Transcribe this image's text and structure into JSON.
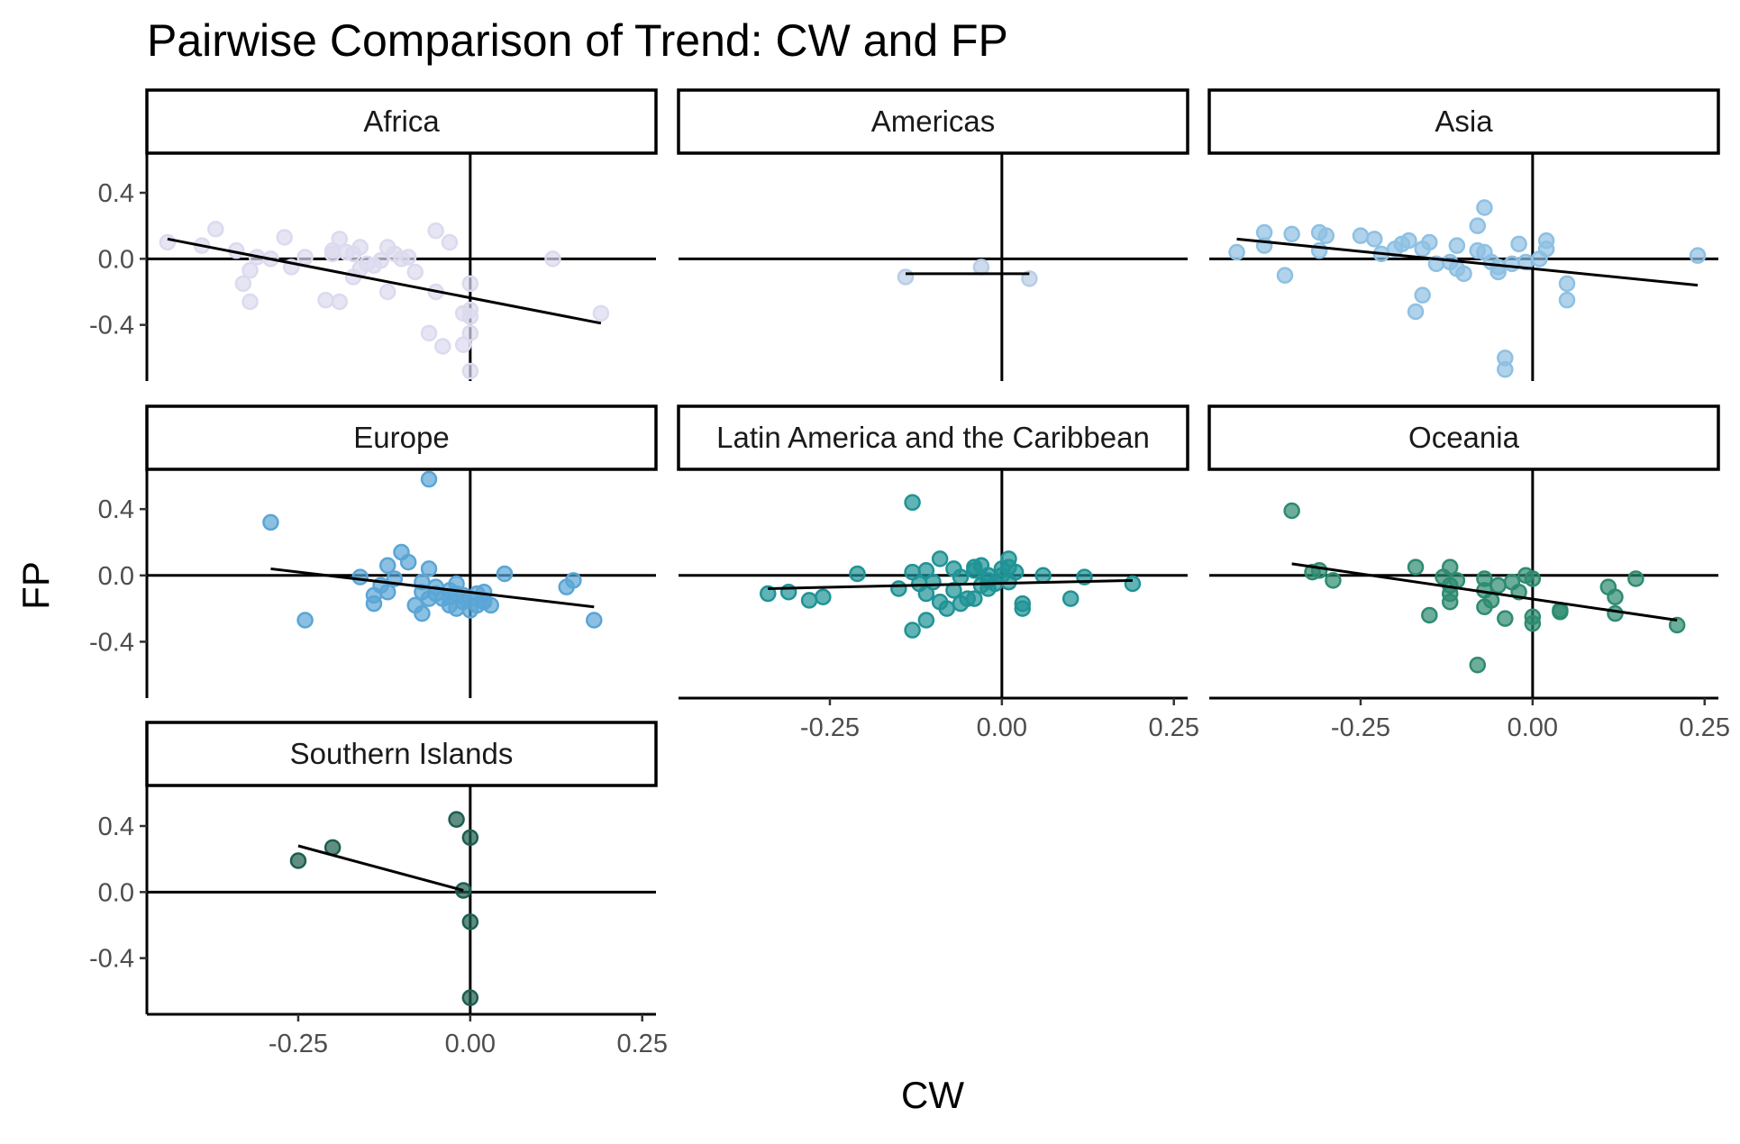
{
  "chart_data": {
    "type": "scatter",
    "title": "Pairwise Comparison of Trend: CW and FP",
    "xlabel": "CW",
    "ylabel": "FP",
    "xlim": [
      -0.47,
      0.27
    ],
    "ylim": [
      -0.74,
      0.64
    ],
    "x_ticks": [
      -0.25,
      0.0,
      0.25
    ],
    "x_tick_labels": [
      "-0.25",
      "0.00",
      "0.25"
    ],
    "y_ticks": [
      0.4,
      0.0,
      -0.4
    ],
    "y_tick_labels": [
      "0.4",
      "0.0",
      "-0.4"
    ],
    "grid": false,
    "legend": "none",
    "reference_lines": {
      "x": 0,
      "y": 0
    },
    "panels": [
      {
        "name": "Africa",
        "color": "#dcdaee",
        "trend": {
          "x": [
            -0.44,
            0.19
          ],
          "y": [
            0.12,
            -0.39
          ]
        },
        "points": [
          [
            -0.44,
            0.1
          ],
          [
            -0.39,
            0.08
          ],
          [
            -0.37,
            0.18
          ],
          [
            -0.34,
            0.05
          ],
          [
            -0.33,
            -0.15
          ],
          [
            -0.32,
            -0.07
          ],
          [
            -0.32,
            -0.26
          ],
          [
            -0.31,
            0.01
          ],
          [
            -0.29,
            0.0
          ],
          [
            -0.27,
            0.13
          ],
          [
            -0.26,
            -0.05
          ],
          [
            -0.24,
            0.01
          ],
          [
            -0.21,
            -0.25
          ],
          [
            -0.2,
            0.03
          ],
          [
            -0.2,
            0.05
          ],
          [
            -0.19,
            0.12
          ],
          [
            -0.19,
            -0.26
          ],
          [
            -0.18,
            0.04
          ],
          [
            -0.17,
            0.03
          ],
          [
            -0.17,
            -0.11
          ],
          [
            -0.16,
            0.07
          ],
          [
            -0.16,
            -0.06
          ],
          [
            -0.15,
            -0.03
          ],
          [
            -0.14,
            -0.04
          ],
          [
            -0.13,
            -0.01
          ],
          [
            -0.12,
            0.07
          ],
          [
            -0.12,
            -0.2
          ],
          [
            -0.11,
            0.03
          ],
          [
            -0.1,
            0.0
          ],
          [
            -0.09,
            0.01
          ],
          [
            -0.08,
            -0.08
          ],
          [
            -0.06,
            -0.45
          ],
          [
            -0.05,
            0.17
          ],
          [
            -0.05,
            -0.2
          ],
          [
            -0.04,
            -0.53
          ],
          [
            -0.03,
            0.1
          ],
          [
            -0.01,
            -0.52
          ],
          [
            -0.01,
            -0.33
          ],
          [
            0.0,
            -0.15
          ],
          [
            0.0,
            -0.31
          ],
          [
            0.0,
            -0.35
          ],
          [
            0.0,
            -0.45
          ],
          [
            0.0,
            -0.68
          ],
          [
            0.12,
            0.0
          ],
          [
            0.19,
            -0.33
          ]
        ]
      },
      {
        "name": "Americas",
        "color": "#b8cce6",
        "trend": {
          "x": [
            -0.14,
            0.04
          ],
          "y": [
            -0.09,
            -0.09
          ]
        },
        "points": [
          [
            -0.14,
            -0.11
          ],
          [
            -0.03,
            -0.05
          ],
          [
            0.04,
            -0.12
          ]
        ]
      },
      {
        "name": "Asia",
        "color": "#8ec0e3",
        "trend": {
          "x": [
            -0.43,
            0.24
          ],
          "y": [
            0.12,
            -0.16
          ]
        },
        "points": [
          [
            -0.43,
            0.04
          ],
          [
            -0.39,
            0.16
          ],
          [
            -0.39,
            0.08
          ],
          [
            -0.36,
            -0.1
          ],
          [
            -0.35,
            0.15
          ],
          [
            -0.31,
            0.16
          ],
          [
            -0.31,
            0.05
          ],
          [
            -0.3,
            0.14
          ],
          [
            -0.25,
            0.14
          ],
          [
            -0.23,
            0.12
          ],
          [
            -0.22,
            0.03
          ],
          [
            -0.2,
            0.06
          ],
          [
            -0.19,
            0.09
          ],
          [
            -0.18,
            0.11
          ],
          [
            -0.17,
            -0.32
          ],
          [
            -0.16,
            -0.22
          ],
          [
            -0.16,
            0.06
          ],
          [
            -0.15,
            0.1
          ],
          [
            -0.14,
            -0.03
          ],
          [
            -0.12,
            -0.02
          ],
          [
            -0.11,
            0.08
          ],
          [
            -0.11,
            -0.06
          ],
          [
            -0.1,
            -0.09
          ],
          [
            -0.08,
            0.2
          ],
          [
            -0.08,
            0.05
          ],
          [
            -0.07,
            0.31
          ],
          [
            -0.07,
            0.04
          ],
          [
            -0.06,
            -0.02
          ],
          [
            -0.05,
            -0.05
          ],
          [
            -0.05,
            -0.08
          ],
          [
            -0.04,
            -0.6
          ],
          [
            -0.04,
            -0.67
          ],
          [
            -0.03,
            -0.03
          ],
          [
            -0.02,
            0.09
          ],
          [
            -0.01,
            -0.02
          ],
          [
            0.01,
            0.0
          ],
          [
            0.02,
            0.06
          ],
          [
            0.02,
            0.11
          ],
          [
            0.05,
            -0.15
          ],
          [
            0.05,
            -0.25
          ],
          [
            0.24,
            0.02
          ]
        ]
      },
      {
        "name": "Europe",
        "color": "#5aa5d5",
        "trend": {
          "x": [
            -0.29,
            0.18
          ],
          "y": [
            0.04,
            -0.19
          ]
        },
        "points": [
          [
            -0.29,
            0.32
          ],
          [
            -0.24,
            -0.27
          ],
          [
            -0.16,
            -0.01
          ],
          [
            -0.14,
            -0.12
          ],
          [
            -0.14,
            -0.17
          ],
          [
            -0.13,
            -0.06
          ],
          [
            -0.12,
            0.06
          ],
          [
            -0.12,
            -0.1
          ],
          [
            -0.11,
            -0.02
          ],
          [
            -0.1,
            0.14
          ],
          [
            -0.09,
            0.08
          ],
          [
            -0.08,
            -0.18
          ],
          [
            -0.07,
            -0.04
          ],
          [
            -0.07,
            -0.1
          ],
          [
            -0.07,
            -0.23
          ],
          [
            -0.06,
            0.58
          ],
          [
            -0.06,
            0.04
          ],
          [
            -0.06,
            -0.14
          ],
          [
            -0.05,
            -0.07
          ],
          [
            -0.05,
            -0.11
          ],
          [
            -0.04,
            -0.14
          ],
          [
            -0.03,
            -0.09
          ],
          [
            -0.03,
            -0.13
          ],
          [
            -0.03,
            -0.18
          ],
          [
            -0.02,
            -0.05
          ],
          [
            -0.02,
            -0.11
          ],
          [
            -0.02,
            -0.2
          ],
          [
            -0.01,
            -0.12
          ],
          [
            -0.01,
            -0.16
          ],
          [
            0.0,
            -0.21
          ],
          [
            0.0,
            -0.14
          ],
          [
            0.01,
            -0.18
          ],
          [
            0.01,
            -0.11
          ],
          [
            0.02,
            -0.15
          ],
          [
            0.02,
            -0.1
          ],
          [
            0.02,
            -0.16
          ],
          [
            0.03,
            -0.18
          ],
          [
            0.05,
            0.01
          ],
          [
            0.14,
            -0.07
          ],
          [
            0.15,
            -0.03
          ],
          [
            0.18,
            -0.27
          ]
        ]
      },
      {
        "name": "Latin America and the Caribbean",
        "color": "#1f9396",
        "trend": {
          "x": [
            -0.34,
            0.19
          ],
          "y": [
            -0.08,
            -0.03
          ]
        },
        "points": [
          [
            -0.34,
            -0.11
          ],
          [
            -0.31,
            -0.1
          ],
          [
            -0.28,
            -0.15
          ],
          [
            -0.26,
            -0.13
          ],
          [
            -0.21,
            0.01
          ],
          [
            -0.15,
            -0.08
          ],
          [
            -0.13,
            0.44
          ],
          [
            -0.13,
            0.02
          ],
          [
            -0.13,
            -0.33
          ],
          [
            -0.12,
            -0.05
          ],
          [
            -0.11,
            0.03
          ],
          [
            -0.11,
            -0.11
          ],
          [
            -0.11,
            -0.27
          ],
          [
            -0.1,
            -0.04
          ],
          [
            -0.09,
            0.1
          ],
          [
            -0.09,
            -0.16
          ],
          [
            -0.08,
            -0.2
          ],
          [
            -0.07,
            0.04
          ],
          [
            -0.07,
            -0.09
          ],
          [
            -0.06,
            -0.17
          ],
          [
            -0.06,
            -0.01
          ],
          [
            -0.05,
            -0.14
          ],
          [
            -0.04,
            0.03
          ],
          [
            -0.04,
            0.05
          ],
          [
            -0.04,
            -0.14
          ],
          [
            -0.03,
            0.06
          ],
          [
            -0.03,
            -0.06
          ],
          [
            -0.02,
            -0.03
          ],
          [
            -0.02,
            0.0
          ],
          [
            -0.02,
            -0.08
          ],
          [
            -0.01,
            -0.05
          ],
          [
            0.0,
            0.04
          ],
          [
            0.0,
            0.0
          ],
          [
            0.01,
            -0.04
          ],
          [
            0.01,
            0.1
          ],
          [
            0.01,
            0.05
          ],
          [
            0.02,
            0.02
          ],
          [
            0.03,
            -0.17
          ],
          [
            0.03,
            -0.2
          ],
          [
            0.06,
            0.0
          ],
          [
            0.1,
            -0.14
          ],
          [
            0.12,
            -0.01
          ],
          [
            0.19,
            -0.05
          ]
        ]
      },
      {
        "name": "Oceania",
        "color": "#2e8b70",
        "trend": {
          "x": [
            -0.35,
            0.21
          ],
          "y": [
            0.07,
            -0.27
          ]
        },
        "points": [
          [
            -0.35,
            0.39
          ],
          [
            -0.32,
            0.02
          ],
          [
            -0.31,
            0.03
          ],
          [
            -0.29,
            -0.03
          ],
          [
            -0.17,
            0.05
          ],
          [
            -0.15,
            -0.24
          ],
          [
            -0.13,
            -0.01
          ],
          [
            -0.12,
            0.05
          ],
          [
            -0.12,
            -0.06
          ],
          [
            -0.12,
            -0.11
          ],
          [
            -0.12,
            -0.16
          ],
          [
            -0.11,
            -0.03
          ],
          [
            -0.08,
            -0.54
          ],
          [
            -0.07,
            -0.02
          ],
          [
            -0.07,
            -0.09
          ],
          [
            -0.07,
            -0.19
          ],
          [
            -0.06,
            -0.15
          ],
          [
            -0.05,
            -0.06
          ],
          [
            -0.04,
            -0.26
          ],
          [
            -0.03,
            -0.04
          ],
          [
            -0.02,
            -0.1
          ],
          [
            -0.01,
            0.0
          ],
          [
            0.0,
            -0.02
          ],
          [
            0.0,
            -0.25
          ],
          [
            0.0,
            -0.29
          ],
          [
            0.04,
            -0.21
          ],
          [
            0.04,
            -0.22
          ],
          [
            0.11,
            -0.07
          ],
          [
            0.12,
            -0.13
          ],
          [
            0.12,
            -0.23
          ],
          [
            0.15,
            -0.02
          ],
          [
            0.21,
            -0.3
          ]
        ]
      },
      {
        "name": "Southern Islands",
        "color": "#1d5e4f",
        "trend": {
          "x": [
            -0.25,
            -0.01
          ],
          "y": [
            0.28,
            0.01
          ]
        },
        "points": [
          [
            -0.25,
            0.19
          ],
          [
            -0.2,
            0.27
          ],
          [
            -0.02,
            0.44
          ],
          [
            -0.01,
            0.01
          ],
          [
            0.0,
            0.33
          ],
          [
            0.0,
            -0.18
          ],
          [
            0.0,
            -0.64
          ]
        ]
      }
    ]
  }
}
